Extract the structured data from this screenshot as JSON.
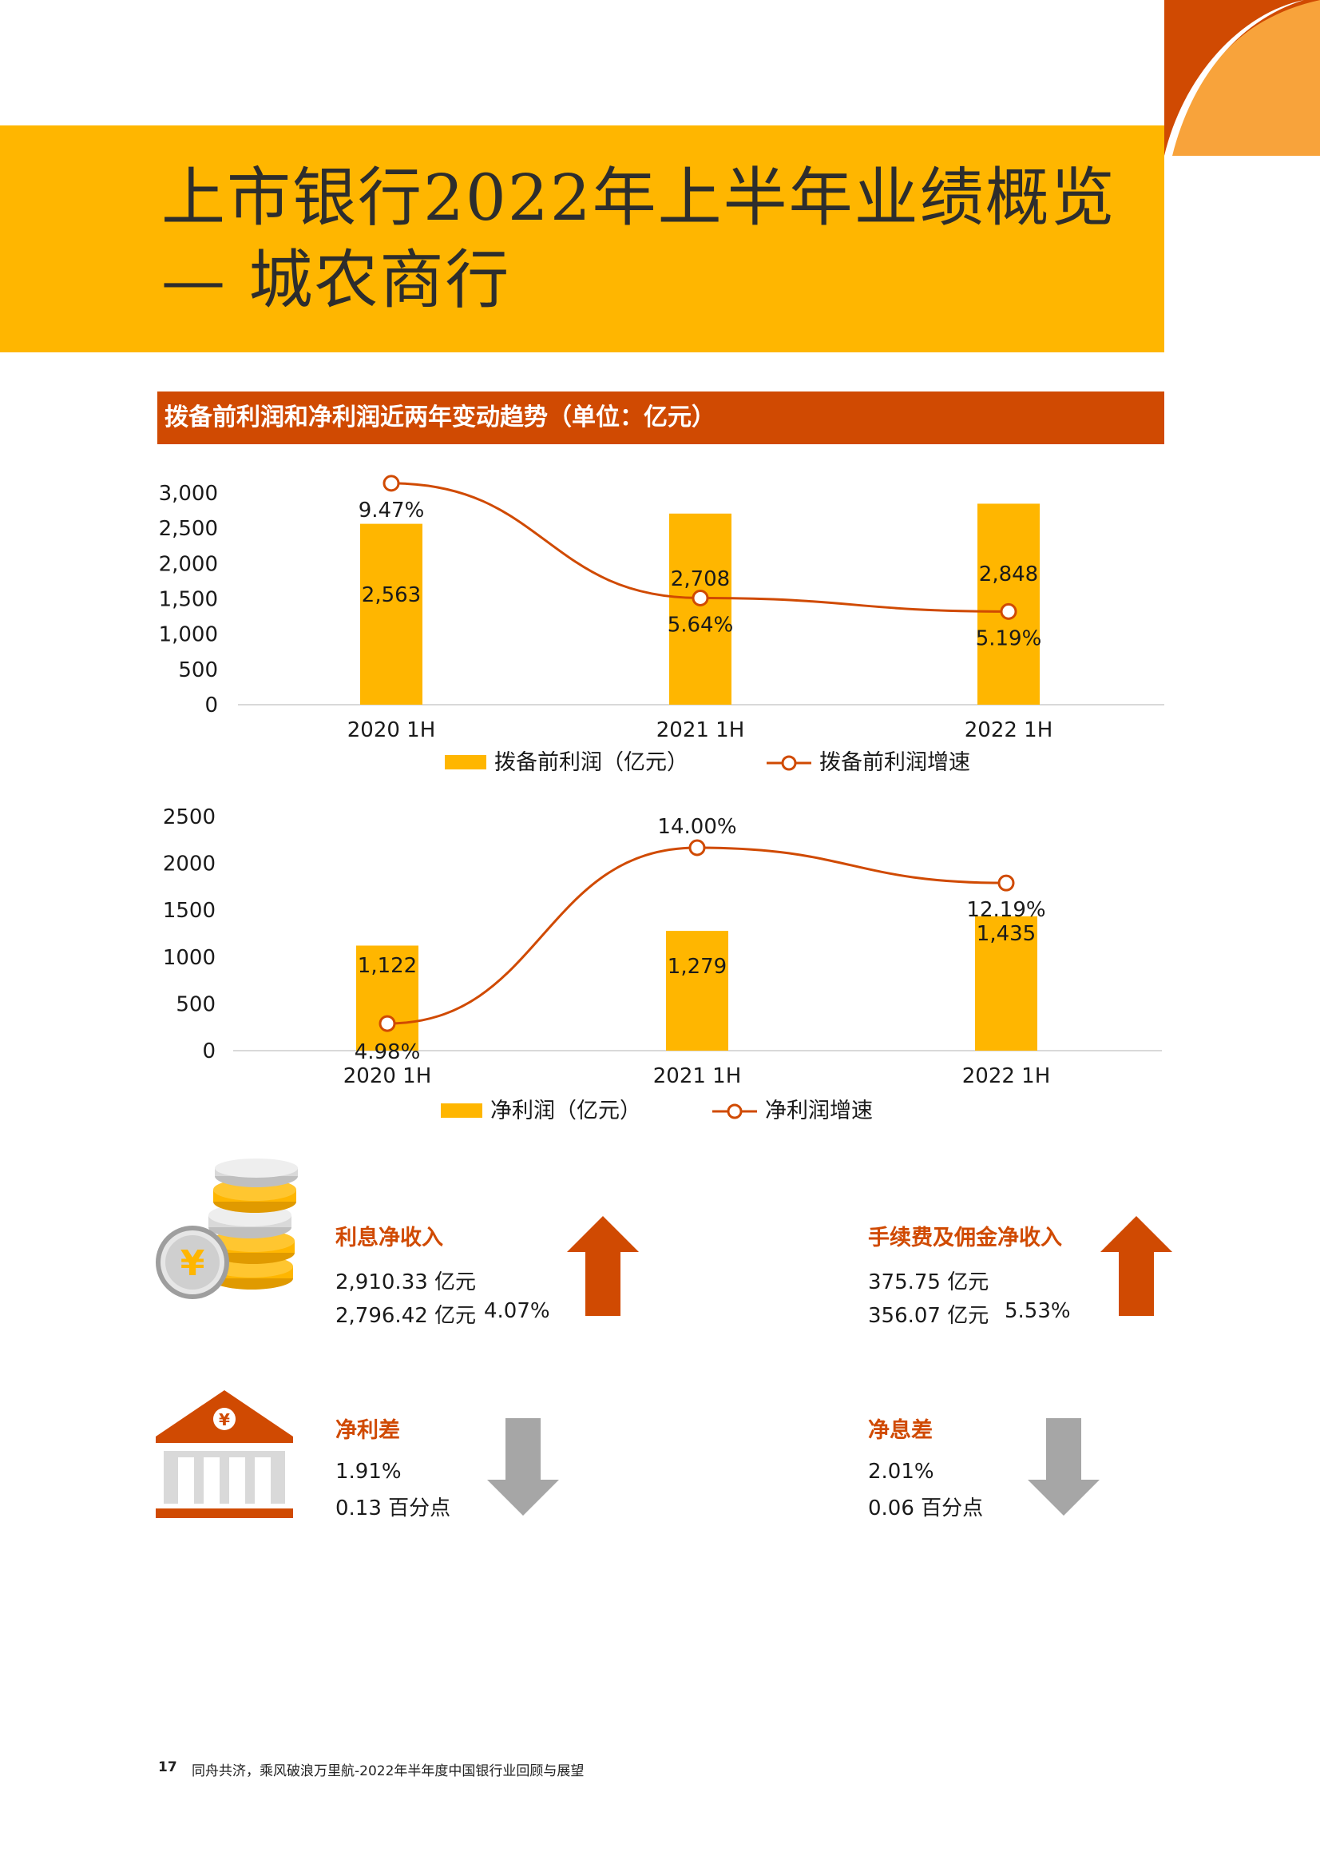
{
  "title": {
    "line1": "上市银行2022年上半年业绩概览",
    "line2": "— 城农商行"
  },
  "section": {
    "header": "拨备前利润和净利润近两年变动趋势（单位：亿元）"
  },
  "colors": {
    "accent_yellow": "#FFB600",
    "accent_orange": "#D04A02",
    "arrow_up": "#D04A02",
    "arrow_down": "#A6A6A6"
  },
  "chart_data": [
    {
      "type": "bar",
      "categories": [
        "2020 1H",
        "2021 1H",
        "2022 1H"
      ],
      "series": [
        {
          "name": "拨备前利润（亿元）",
          "values": [
            2563,
            2708,
            2848
          ],
          "labels": [
            "2,563",
            "2,708",
            "2,848"
          ]
        },
        {
          "name": "拨备前利润增速",
          "type": "line",
          "values": [
            9.47,
            5.64,
            5.19
          ],
          "labels": [
            "9.47%",
            "5.64%",
            "5.19%"
          ]
        }
      ],
      "yticks": [
        "0",
        "500",
        "1,000",
        "1,500",
        "2,000",
        "2,500",
        "3,000"
      ],
      "ylim": [
        0,
        3000
      ],
      "legend": "bottom",
      "grid": false
    },
    {
      "type": "bar",
      "categories": [
        "2020 1H",
        "2021 1H",
        "2022 1H"
      ],
      "series": [
        {
          "name": "净利润（亿元）",
          "values": [
            1122,
            1279,
            1435
          ],
          "labels": [
            "1,122",
            "1,279",
            "1,435"
          ]
        },
        {
          "name": "净利润增速",
          "type": "line",
          "values": [
            4.98,
            14.0,
            12.19
          ],
          "labels": [
            "4.98%",
            "14.00%",
            "12.19%"
          ]
        }
      ],
      "yticks": [
        "0",
        "500",
        "1000",
        "1500",
        "2000",
        "2500"
      ],
      "ylim": [
        0,
        2500
      ],
      "legend": "bottom",
      "grid": false
    }
  ],
  "metrics": [
    {
      "label": "利息净收入",
      "current": "2,910.33 亿元",
      "previous": "2,796.42 亿元",
      "change": "4.07%",
      "direction": "up",
      "icon": "coins-yen-icon"
    },
    {
      "label": "手续费及佣金净收入",
      "current": "375.75 亿元",
      "previous": "356.07 亿元",
      "change": "5.53%",
      "direction": "up",
      "icon": ""
    },
    {
      "label": "净利差",
      "current": "1.91%",
      "previous": "0.13 百分点",
      "change": "",
      "direction": "down",
      "icon": "bank-icon"
    },
    {
      "label": "净息差",
      "current": "2.01%",
      "previous": "0.06 百分点",
      "change": "",
      "direction": "down",
      "icon": ""
    }
  ],
  "footer": {
    "page_number": "17",
    "text": "同舟共济，乘风破浪万里航-2022年半年度中国银行业回顾与展望"
  }
}
